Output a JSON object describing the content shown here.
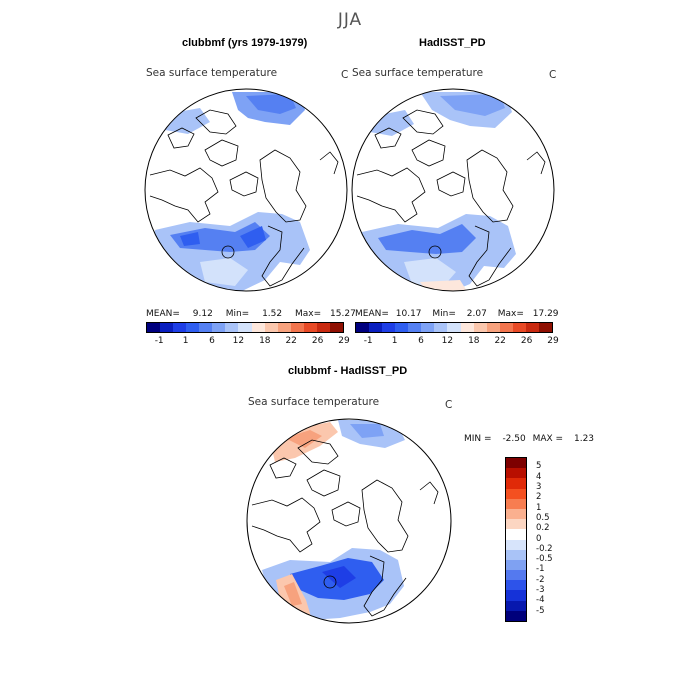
{
  "season": "JJA",
  "panels": [
    {
      "title": "clubbmf (yrs 1979-1979)",
      "field_label": "Sea surface temperature",
      "units": "C",
      "stats": {
        "mean_label": "MEAN=",
        "mean": "9.12",
        "min_label": "Min=",
        "min": "1.52",
        "max_label": "Max=",
        "max": "15.27"
      }
    },
    {
      "title": "HadISST_PD",
      "field_label": "Sea surface temperature",
      "units": "C",
      "stats": {
        "mean_label": "MEAN=",
        "mean": "10.17",
        "min_label": "Min=",
        "min": "2.07",
        "max_label": "Max=",
        "max": "17.29"
      }
    },
    {
      "title": "clubbmf - HadISST_PD",
      "field_label": "Sea surface temperature",
      "units": "C",
      "stats": {
        "min_label": "MIN =",
        "min": "-2.50",
        "max_label": "MAX =",
        "max": "1.23"
      }
    }
  ],
  "abs_colorbar": {
    "colors": [
      "#00007f",
      "#0a1fbf",
      "#1e3ee6",
      "#2f5ef0",
      "#5580f2",
      "#7ea2f5",
      "#a9c3f8",
      "#d3e2fb",
      "#fde7dc",
      "#fbc7ad",
      "#f7a27e",
      "#f2754e",
      "#e84a26",
      "#c92a10",
      "#8f1002"
    ],
    "ticks": [
      "-1",
      "1",
      "6",
      "12",
      "18",
      "22",
      "26",
      "29"
    ]
  },
  "diff_colorbar": {
    "colors": [
      "#7d0000",
      "#b80f00",
      "#e02a08",
      "#f45020",
      "#f77d50",
      "#fab08f",
      "#fcd6c2",
      "#ffffff",
      "#d7e4fb",
      "#a9c3f7",
      "#7fa1f2",
      "#5479ef",
      "#2d53ea",
      "#1532d8",
      "#0718ae",
      "#00007b"
    ],
    "ticks": [
      "5",
      "4",
      "3",
      "2",
      "1",
      "0.5",
      "0.2",
      "0",
      "-0.2",
      "-0.5",
      "-1",
      "-2",
      "-3",
      "-4",
      "-5"
    ]
  }
}
